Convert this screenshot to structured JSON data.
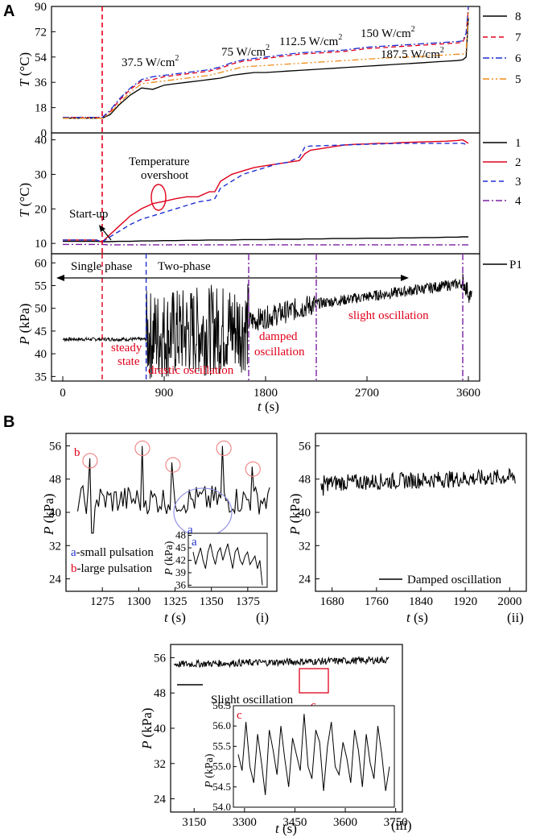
{
  "figure": {
    "panel_a_label": "A",
    "panel_b_label": "B"
  },
  "chart_data": [
    {
      "id": "A-top",
      "type": "line",
      "title": "",
      "xlabel": "t (s)",
      "ylabel_t": "T",
      "ylabel_rest": " (°C)",
      "xlim": [
        0,
        3700
      ],
      "ylim": [
        0,
        90
      ],
      "yticks": [
        "0",
        "18",
        "36",
        "54",
        "72",
        "90"
      ],
      "x": [
        0,
        300,
        350,
        420,
        500,
        600,
        700,
        800,
        900,
        1000,
        1100,
        1200,
        1300,
        1400,
        1500,
        1600,
        1700,
        1800,
        1900,
        2000,
        2100,
        2200,
        2300,
        2400,
        2500,
        2600,
        2700,
        2800,
        2900,
        3000,
        3100,
        3200,
        3300,
        3400,
        3500,
        3550,
        3580,
        3600
      ],
      "series": [
        {
          "name": "8",
          "color": "#000000",
          "dash": "",
          "values": [
            10.5,
            10.5,
            10.5,
            13,
            20,
            27,
            32,
            31,
            34,
            35,
            36,
            37,
            38,
            39,
            41,
            42,
            43,
            43,
            43.5,
            44,
            44.5,
            45,
            45.5,
            46,
            46.5,
            47,
            47.5,
            48,
            48.5,
            49,
            49.5,
            50,
            50.5,
            51,
            51.5,
            52,
            54,
            82
          ]
        },
        {
          "name": "7",
          "color": "#e0001b",
          "dash": "6,4",
          "values": [
            11,
            11,
            11,
            15,
            23,
            31,
            37,
            38,
            40,
            41,
            42,
            43,
            44,
            46,
            49,
            51,
            52,
            53,
            54,
            55,
            56,
            56.5,
            57,
            57.5,
            58,
            59,
            60,
            60.5,
            61,
            61.5,
            62,
            62.5,
            63,
            63.5,
            64,
            64.5,
            70,
            89
          ]
        },
        {
          "name": "6",
          "color": "#1f2fd1",
          "dash": "8,3,2,3",
          "values": [
            11,
            11,
            11,
            16,
            24,
            32,
            38,
            40,
            41,
            42,
            43,
            44,
            45,
            47,
            50,
            52,
            53,
            54,
            55,
            56,
            57,
            57.5,
            58,
            58.5,
            59,
            60,
            61,
            61.5,
            62,
            62.5,
            63,
            63.5,
            64,
            64.5,
            65,
            65.5,
            71,
            90
          ]
        },
        {
          "name": "5",
          "color": "#f08a18",
          "dash": "8,3,2,3,2,3",
          "values": [
            10.5,
            10.5,
            10.5,
            14,
            21,
            29,
            35,
            36,
            37,
            38,
            39,
            40,
            41,
            43,
            45,
            47,
            47.5,
            48,
            48.5,
            49,
            49.5,
            50,
            50.5,
            51,
            51.5,
            52,
            52.5,
            53,
            53.5,
            54,
            54,
            54.5,
            55,
            55.5,
            56,
            56,
            58,
            86
          ]
        }
      ],
      "annotations": [
        "37.5 W/cm",
        "75 W/cm",
        "112.5 W/cm",
        "150 W/cm",
        "187.5 W/cm"
      ],
      "annotation_sup": "2"
    },
    {
      "id": "A-middle",
      "type": "line",
      "title": "",
      "xlabel": "t (s)",
      "ylabel_t": "T",
      "ylabel_rest": " (°C)",
      "xlim": [
        0,
        3700
      ],
      "ylim": [
        7,
        42
      ],
      "yticks": [
        "10",
        "20",
        "30",
        "40"
      ],
      "x": [
        0,
        300,
        350,
        400,
        500,
        600,
        700,
        800,
        900,
        1000,
        1100,
        1200,
        1300,
        1350,
        1400,
        1500,
        1600,
        1700,
        1800,
        1900,
        2000,
        2100,
        2150,
        2200,
        2300,
        2400,
        2500,
        2600,
        2700,
        2800,
        2900,
        3000,
        3100,
        3200,
        3300,
        3400,
        3500,
        3550,
        3600
      ],
      "series": [
        {
          "name": "1",
          "color": "#000000",
          "dash": "",
          "values": [
            10.6,
            10.6,
            10.5,
            10.5,
            10.6,
            10.6,
            10.7,
            10.7,
            10.8,
            10.8,
            10.9,
            10.9,
            11,
            11,
            11,
            11,
            11.1,
            11.1,
            11.1,
            11.2,
            11.2,
            11.2,
            11.3,
            11.3,
            11.3,
            11.4,
            11.4,
            11.4,
            11.5,
            11.5,
            11.5,
            11.6,
            11.6,
            11.7,
            11.7,
            11.8,
            11.8,
            11.9,
            11.9
          ]
        },
        {
          "name": "2",
          "color": "#e0001b",
          "dash": "",
          "values": [
            11,
            11,
            10.4,
            12,
            15,
            18,
            20,
            22,
            22.5,
            23,
            23.5,
            24,
            24.5,
            25,
            28,
            30,
            31,
            32,
            32.5,
            33,
            33.5,
            34,
            36,
            37,
            37.5,
            38,
            38.5,
            38.7,
            38.8,
            39,
            39,
            39.2,
            39.3,
            39.4,
            39.5,
            39.6,
            39.8,
            40,
            39
          ]
        },
        {
          "name": "3",
          "color": "#1f2fd1",
          "dash": "6,4",
          "values": [
            11,
            11,
            10.4,
            11.5,
            13.5,
            15.5,
            17,
            18,
            19,
            20,
            21,
            22,
            22.5,
            23,
            26,
            28,
            30,
            31,
            32,
            33,
            33.5,
            35,
            38,
            38.2,
            38.3,
            38.4,
            38.5,
            38.6,
            38.7,
            38.8,
            38.9,
            39,
            39,
            39,
            39,
            39,
            39,
            39,
            38.5
          ]
        },
        {
          "name": "4",
          "color": "#7b1fa2",
          "dash": "8,3,2,3",
          "values": [
            9.7,
            9.7,
            9.7,
            9.6,
            9.6,
            9.6,
            9.6,
            9.6,
            9.6,
            9.6,
            9.6,
            9.6,
            9.6,
            9.6,
            9.6,
            9.6,
            9.6,
            9.6,
            9.6,
            9.6,
            9.6,
            9.6,
            9.6,
            9.6,
            9.6,
            9.6,
            9.6,
            9.6,
            9.6,
            9.6,
            9.6,
            9.6,
            9.6,
            9.6,
            9.6,
            9.6,
            9.6,
            9.6,
            9.6
          ]
        }
      ],
      "annotations": {
        "overshoot_line1": "Temperature",
        "overshoot_line2": "overshoot",
        "startup": "Start-up"
      }
    },
    {
      "id": "A-bottom",
      "type": "line",
      "title": "",
      "xlabel_t": "t",
      "xlabel_rest": " (s)",
      "ylabel_t": "P",
      "ylabel_rest": " (kPa)",
      "xlim": [
        -100,
        3700
      ],
      "ylim": [
        34,
        62
      ],
      "xticks": [
        "0",
        "900",
        "1800",
        "2700",
        "3600"
      ],
      "xtick_values": [
        0,
        900,
        1800,
        2700,
        3600
      ],
      "yticks": [
        "35",
        "40",
        "45",
        "50",
        "55",
        "60"
      ],
      "series": [
        {
          "name": "P1",
          "color": "#000000",
          "dash": "",
          "segments": [
            {
              "x0": 0,
              "x1": 740,
              "base0": 43.2,
              "base1": 43.2,
              "amp": 0.4
            },
            {
              "x0": 740,
              "x1": 1650,
              "base0": 44,
              "base1": 46,
              "amp": 10
            },
            {
              "x0": 1650,
              "x1": 2250,
              "base0": 47,
              "base1": 51,
              "amp": 2.5
            },
            {
              "x0": 2250,
              "x1": 3550,
              "base0": 51,
              "base1": 55.5,
              "amp": 1.2
            },
            {
              "x0": 3550,
              "x1": 3630,
              "base0": 56,
              "base1": 52,
              "amp": 2
            }
          ]
        }
      ],
      "vlines": [
        {
          "x": 350,
          "color": "#e0001b",
          "dash": "6,4"
        },
        {
          "x": 740,
          "color": "#1f2fd1",
          "dash": "6,4"
        },
        {
          "x": 1650,
          "color": "#7b1fa2",
          "dash": "8,3,2,3"
        },
        {
          "x": 2250,
          "color": "#7b1fa2",
          "dash": "8,3,2,3"
        },
        {
          "x": 3550,
          "color": "#7b1fa2",
          "dash": "8,3,2,3"
        }
      ],
      "annotations": {
        "single_phase": "Single phase",
        "two_phase": "Two-phase",
        "steady": "steady",
        "state": "state",
        "drastic": "drastic oscillation",
        "damped1": "damped",
        "damped2": "oscillation",
        "slight": "slight oscillation"
      }
    },
    {
      "id": "B-i",
      "type": "line",
      "xlabel_t": "t",
      "xlabel_rest": " (s)",
      "ylabel_t": "P",
      "ylabel_rest": " (kPa)",
      "xlim": [
        1250,
        1395
      ],
      "ylim": [
        21,
        59
      ],
      "xticks": [
        "1275",
        "1300",
        "1325",
        "1350",
        "1375"
      ],
      "xtick_values": [
        1275,
        1300,
        1325,
        1350,
        1375
      ],
      "yticks": [
        "24",
        "32",
        "40",
        "48",
        "56"
      ],
      "ytick_values": [
        24,
        32,
        40,
        48,
        56
      ],
      "spikes": [
        1266,
        1302,
        1323,
        1358,
        1378
      ],
      "spike_values": [
        53,
        56,
        52,
        56,
        51
      ],
      "legend": {
        "a_key": "a",
        "a_text": "-small pulsation",
        "b_key": "b",
        "b_text": "-large pulsation"
      },
      "label_b": "b",
      "label_a": "a",
      "inset": {
        "label": "a",
        "ylabel_t": "P",
        "ylabel_rest": " (kPa)",
        "yticks": [
          "36",
          "39",
          "42",
          "45",
          "48"
        ],
        "ytick_values": [
          36,
          39,
          42,
          45,
          48
        ],
        "ylim": [
          35.5,
          48.5
        ],
        "values": [
          44,
          41,
          43,
          45,
          42,
          40,
          44,
          46,
          43,
          41,
          44,
          45,
          42,
          44,
          46,
          43,
          40,
          44,
          45,
          42,
          41,
          43,
          44,
          41,
          42,
          43,
          40,
          42,
          36
        ]
      },
      "panel_num": "(i)"
    },
    {
      "id": "B-ii",
      "type": "line",
      "xlabel_t": "t",
      "xlabel_rest": " (s)",
      "ylabel_t": "P",
      "ylabel_rest": " (kPa)",
      "xlim": [
        1650,
        2030
      ],
      "ylim": [
        21,
        59
      ],
      "xticks": [
        "1680",
        "1760",
        "1840",
        "1920",
        "2000"
      ],
      "xtick_values": [
        1680,
        1760,
        1840,
        1920,
        2000
      ],
      "yticks": [
        "24",
        "32",
        "40",
        "48",
        "56"
      ],
      "ytick_values": [
        24,
        32,
        40,
        48,
        56
      ],
      "range": [
        1660,
        2010
      ],
      "mean": [
        47,
        48.5
      ],
      "amp": 2,
      "legend": "Damped oscillation",
      "panel_num": "(ii)"
    },
    {
      "id": "B-iii",
      "type": "line",
      "xlabel_t": "t",
      "xlabel_rest": " (s)",
      "ylabel_t": "P",
      "ylabel_rest": " (kPa)",
      "xlim": [
        3080,
        3770
      ],
      "ylim": [
        21,
        59
      ],
      "xticks": [
        "3150",
        "3300",
        "3450",
        "3600",
        "3750"
      ],
      "xtick_values": [
        3150,
        3300,
        3450,
        3600,
        3750
      ],
      "yticks": [
        "24",
        "32",
        "40",
        "48",
        "56"
      ],
      "ytick_values": [
        24,
        32,
        40,
        48,
        56
      ],
      "range": [
        3090,
        3730
      ],
      "mean": [
        54.5,
        55.5
      ],
      "amp": 0.8,
      "legend": "Slight oscillation",
      "label_c": "c",
      "inset": {
        "label": "c",
        "ylabel_t": "P",
        "ylabel_rest": " (kPa)",
        "yticks": [
          "54.0",
          "54.5",
          "55.0",
          "55.5",
          "56.0",
          "56.5"
        ],
        "ytick_values": [
          54.0,
          54.5,
          55.0,
          55.5,
          56.0,
          56.5
        ],
        "ylim": [
          54.0,
          56.5
        ],
        "values": [
          55.3,
          54.9,
          56.1,
          55.0,
          54.6,
          55.8,
          55.1,
          54.3,
          55.9,
          55.4,
          54.8,
          56.0,
          55.2,
          54.5,
          55.7,
          55.3,
          54.9,
          56.3,
          55.0,
          54.7,
          55.9,
          55.6,
          54.4,
          55.5,
          56.1,
          55.0,
          54.8,
          55.6,
          55.2,
          54.6,
          55.9,
          55.4,
          54.5,
          55.8,
          55.1,
          54.7,
          56.0,
          55.3,
          54.4,
          55.0
        ]
      },
      "panel_num": "(iii)"
    }
  ]
}
